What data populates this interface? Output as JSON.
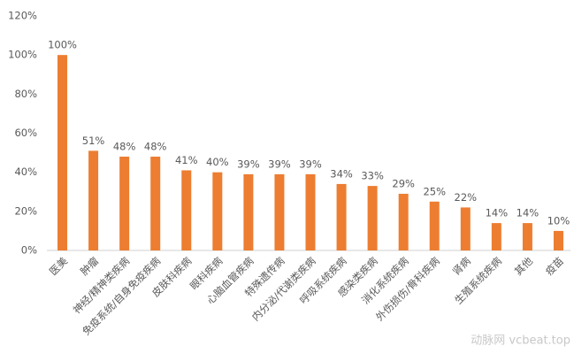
{
  "chart_data": {
    "type": "bar",
    "categories": [
      "医美",
      "肿瘤",
      "神经/精神类疾病",
      "免疫系统/自身免疫疾病",
      "皮肤科疾病",
      "眼科疾病",
      "心脑血管疾病",
      "特殊遗传病",
      "内分泌/代谢类疾病",
      "呼吸系统疾病",
      "感染类疾病",
      "消化系统疾病",
      "外伤损伤/骨科疾病",
      "肾病",
      "生殖系统疾病",
      "其他",
      "疫苗"
    ],
    "values": [
      100,
      51,
      48,
      48,
      41,
      40,
      39,
      39,
      39,
      34,
      33,
      29,
      25,
      22,
      14,
      14,
      10
    ],
    "value_labels": [
      "100%",
      "51%",
      "48%",
      "48%",
      "41%",
      "40%",
      "39%",
      "39%",
      "39%",
      "34%",
      "33%",
      "29%",
      "25%",
      "22%",
      "14%",
      "14%",
      "10%"
    ],
    "color": "#ed7d31",
    "ylim": [
      0,
      120
    ],
    "yticks": [
      {
        "value": 0,
        "label": "0%"
      },
      {
        "value": 20,
        "label": "20%"
      },
      {
        "value": 40,
        "label": "40%"
      },
      {
        "value": 60,
        "label": "60%"
      },
      {
        "value": 80,
        "label": "80%"
      },
      {
        "value": 100,
        "label": "100%"
      },
      {
        "value": 120,
        "label": "120%"
      }
    ],
    "grid": false,
    "watermark": "动脉网 vcbeat.top"
  }
}
